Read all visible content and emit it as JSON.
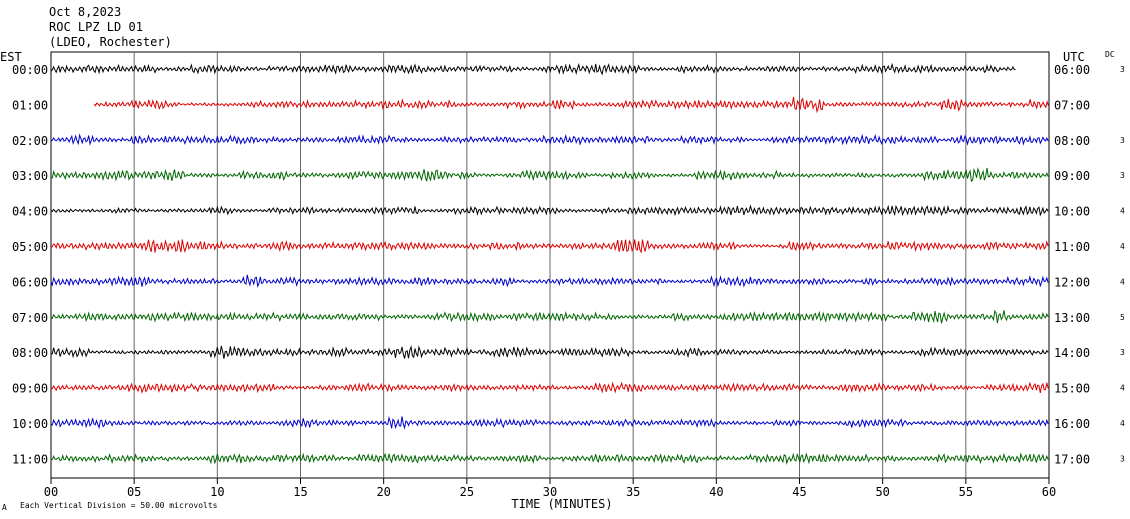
{
  "header": {
    "date": "Oct 8,2023",
    "station": "ROC LPZ LD 01",
    "network": "(LDEO, Rochester)"
  },
  "left_axis_title": "EST",
  "right_axis_title": "UTC",
  "dc_title": "DC",
  "footer": {
    "scale_note": "Each Vertical Division =  50.00 microvolts",
    "corner_mark": "A"
  },
  "chart_data": {
    "type": "line",
    "title": "",
    "xlabel": "TIME (MINUTES)",
    "ylabel": "",
    "xlim": [
      0,
      60
    ],
    "x_ticks": [
      "00",
      "05",
      "10",
      "15",
      "20",
      "25",
      "30",
      "35",
      "40",
      "45",
      "50",
      "55",
      "60"
    ],
    "grid": "vertical every 5 minutes",
    "trace_colors": [
      "#000000",
      "#dd0000",
      "#0000cc",
      "#006600"
    ],
    "rows": [
      {
        "est": "00:00",
        "utc": "06:00",
        "dc": "3",
        "start_min": 0,
        "end_min": 58
      },
      {
        "est": "01:00",
        "utc": "07:00",
        "dc": "",
        "start_min": 2.6,
        "end_min": 60
      },
      {
        "est": "02:00",
        "utc": "08:00",
        "dc": "3",
        "start_min": 0,
        "end_min": 60
      },
      {
        "est": "03:00",
        "utc": "09:00",
        "dc": "3",
        "start_min": 0,
        "end_min": 60
      },
      {
        "est": "04:00",
        "utc": "10:00",
        "dc": "4",
        "start_min": 0,
        "end_min": 60
      },
      {
        "est": "05:00",
        "utc": "11:00",
        "dc": "4",
        "start_min": 0,
        "end_min": 60
      },
      {
        "est": "06:00",
        "utc": "12:00",
        "dc": "4",
        "start_min": 0,
        "end_min": 60
      },
      {
        "est": "07:00",
        "utc": "13:00",
        "dc": "5",
        "start_min": 0,
        "end_min": 60
      },
      {
        "est": "08:00",
        "utc": "14:00",
        "dc": "3",
        "start_min": 0,
        "end_min": 60
      },
      {
        "est": "09:00",
        "utc": "15:00",
        "dc": "4",
        "start_min": 0,
        "end_min": 60
      },
      {
        "est": "10:00",
        "utc": "16:00",
        "dc": "4",
        "start_min": 0,
        "end_min": 60
      },
      {
        "est": "11:00",
        "utc": "17:00",
        "dc": "3",
        "start_min": 0,
        "end_min": 60
      }
    ]
  }
}
